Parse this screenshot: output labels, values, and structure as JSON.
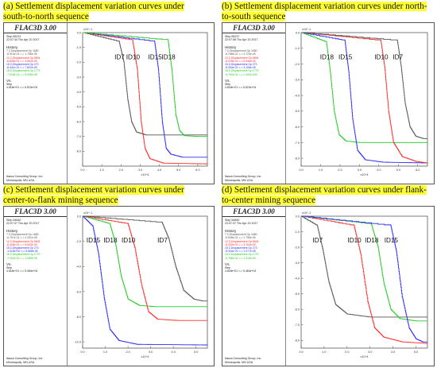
{
  "panels": [
    {
      "title_line1": "(a) Settlement displacement variation curves under",
      "title_line2": "south-to-north sequence",
      "logo": "FLAC3D 3.00",
      "step": "Step 65231",
      "time": "22:07:34 Thu Apr 20 2017",
      "history_label": "History",
      "h1": "7 Z-Displacement Gp 1680",
      "h1b": "-6.913e-01 <-> 1.756e-05",
      "h2": "10 Z-Displacement Gp 6834",
      "h2b": "-8.835e-01 <-> 3.842e-05",
      "h3": "15 Z-Displacement Gp 273",
      "h3b": "-8.441e-01 <-> 7.822e-05",
      "h4": "18 Z-Displacement Gp 1779",
      "h4b": "-7.018e-01 <-> 5.098e-05",
      "vs_label": "Vs.",
      "step_label": "Step",
      "step_range": "4.818e+01 <-> 6.523e+04",
      "footer1": "Itasca Consulting Group, Inc.",
      "footer2": "Minneapolis, MN  USA"
    },
    {
      "title_line1": "(b) Settlement displacement variation curves under north-",
      "title_line2": "to-south sequence",
      "logo": "FLAC3D 3.00",
      "step": "Step 65237",
      "time": "22:07:58 Thu Apr 20 2017",
      "history_label": "History",
      "h1": "7 Z-Displacement Gp 1680",
      "h1b": "-6.768e-01 <-> 4.723e-05",
      "h2": "10 Z-Displacement Gp 6834",
      "h2b": "-8.378e-01 <-> 5.946e-05",
      "h3": "15 Z-Displacement Gp 273",
      "h3b": "-8.264e-01 <-> 3.106e-05",
      "h4": "18 Z-Displacement Gp 1779",
      "h4b": "-6.762e-01 <-> 1.151e-004",
      "vs_label": "Vs.",
      "step_label": "Step",
      "step_range": "4.818e+01 <-> 6.523e+04",
      "footer1": "Itasca Consulting Group, Inc.",
      "footer2": "Minneapolis, MN  USA"
    },
    {
      "title_line1": "(c) Settlement displacement variation curves under",
      "title_line2": "center-to-flank mining sequence",
      "logo": "FLAC3D 3.00",
      "step": "Step 54840",
      "time": "22:07:37 Thu Apr 20 2017",
      "history_label": "History",
      "h1": "7 Z-Displacement Gp 1680",
      "h1b": "-6.767e-01 <-> 4.331e-05",
      "h2": "10 Z-Displacement Gp 6834",
      "h2b": "-8.326e-01 <-> 5.643e-05",
      "h3": "15 Z-Displacement Gp 273",
      "h3b": "-1.023e+00 <-> 5.868e-05",
      "h4": "18 Z-Displacement Gp 1779",
      "h4b": "-7.201e-01 <-> 1.089e-05",
      "vs_label": "Vs.",
      "step_label": "Step",
      "step_range": "4.818e+01 <-> 5.484e+04",
      "footer1": "Itasca Consulting Group, Inc.",
      "footer2": "Minneapolis, MN  USA"
    },
    {
      "title_line1": "(d) Settlement displacement variation curves under flank-",
      "title_line2": "to-center mining sequence",
      "logo": "FLAC3D 3.00",
      "step": "Step 54840",
      "time": "22:07:37 Thu Apr 20 2017",
      "history_label": "History",
      "h1": "7 Z-Displacement Gp 1680",
      "h1b": "-6.508e-01 <-> 1.756e-05",
      "h2": "10 Z-Displacement Gp 6834",
      "h2b": "-8.232e-01 <-> 3.764e-05",
      "h3": "15 Z-Displacement Gp 273",
      "h3b": "-8.416e-01 <-> 1.077e-05",
      "h4": "18 Z-Displacement Gp 1779",
      "h4b": "-6.786e-01 <-> 1.210e-05",
      "vs_label": "Vs.",
      "step_label": "Step",
      "step_range": "4.818e+01 <-> 5.484e+04",
      "footer1": "Itasca Consulting Group, Inc.",
      "footer2": "Minneapolis, MN  USA"
    }
  ],
  "colors": {
    "ID7": "#555555",
    "ID10": "#ff2a2a",
    "ID15": "#2b2bff",
    "ID18": "#22cc22",
    "title_highlight": "#ffff33"
  },
  "chart_data": [
    {
      "type": "line",
      "panel": "a",
      "x_axis_label": "x10^4",
      "y_axis_label": "x10^-1",
      "xlim": [
        0,
        6.5
      ],
      "ylim": [
        -9,
        0
      ],
      "xticks": [
        "0.0",
        "1.0",
        "2.0",
        "3.0",
        "4.0",
        "5.0",
        "6.0"
      ],
      "yticks": [
        "0.0",
        "-1.0",
        "-2.0",
        "-3.0",
        "-4.0",
        "-5.0",
        "-6.0",
        "-7.0",
        "-8.0"
      ],
      "series": [
        {
          "name": "ID7",
          "color": "#555555",
          "x": [
            0.0,
            1.9,
            2.15,
            2.35,
            2.55,
            2.8,
            3.3,
            6.5
          ],
          "y": [
            0.0,
            -0.6,
            -2.0,
            -4.5,
            -6.0,
            -6.7,
            -6.9,
            -6.9
          ]
        },
        {
          "name": "ID10",
          "color": "#ff2a2a",
          "x": [
            0.0,
            2.6,
            2.85,
            3.05,
            3.25,
            3.5,
            4.2,
            6.5
          ],
          "y": [
            0.0,
            -0.5,
            -2.5,
            -6.0,
            -7.8,
            -8.5,
            -8.8,
            -8.85
          ]
        },
        {
          "name": "ID15",
          "color": "#2b2bff",
          "x": [
            0.0,
            3.75,
            3.95,
            4.15,
            4.35,
            4.6,
            5.2,
            6.5
          ],
          "y": [
            0.0,
            -0.6,
            -2.5,
            -6.0,
            -7.8,
            -8.2,
            -8.4,
            -8.4
          ]
        },
        {
          "name": "ID18",
          "color": "#22cc22",
          "x": [
            0.0,
            4.45,
            4.65,
            4.85,
            5.05,
            5.3,
            6.0,
            6.5
          ],
          "y": [
            0.0,
            -0.5,
            -2.5,
            -5.5,
            -6.6,
            -6.95,
            -7.0,
            -7.0
          ]
        }
      ],
      "annotations": [
        "ID7",
        "ID10",
        "ID15",
        "ID18"
      ]
    },
    {
      "type": "line",
      "panel": "b",
      "x_axis_label": "x10^4",
      "y_axis_label": "x10^-1",
      "xlim": [
        0,
        6.5
      ],
      "ylim": [
        -8.5,
        0
      ],
      "xticks": [
        "0.0",
        "1.0",
        "2.0",
        "3.0",
        "4.0",
        "5.0",
        "6.0"
      ],
      "yticks": [
        "0.0",
        "-1.0",
        "-2.0",
        "-3.0",
        "-4.0",
        "-5.0",
        "-6.0",
        "-7.0",
        "-8.0"
      ],
      "series": [
        {
          "name": "ID18",
          "color": "#22cc22",
          "x": [
            0.0,
            1.3,
            1.5,
            1.7,
            1.95,
            2.3,
            3.0,
            6.5
          ],
          "y": [
            0.0,
            -0.6,
            -2.5,
            -5.0,
            -6.5,
            -6.9,
            -7.0,
            -7.0
          ]
        },
        {
          "name": "ID15",
          "color": "#2b2bff",
          "x": [
            0.0,
            2.25,
            2.45,
            2.65,
            2.9,
            3.3,
            4.2,
            6.5
          ],
          "y": [
            0.0,
            -0.5,
            -2.5,
            -5.5,
            -7.5,
            -8.1,
            -8.25,
            -8.3
          ]
        },
        {
          "name": "ID10",
          "color": "#ff2a2a",
          "x": [
            0.0,
            4.1,
            4.3,
            4.5,
            4.75,
            5.2,
            5.9,
            6.5
          ],
          "y": [
            0.0,
            -0.5,
            -2.2,
            -5.0,
            -7.0,
            -7.9,
            -8.2,
            -8.3
          ]
        },
        {
          "name": "ID7",
          "color": "#555555",
          "x": [
            0.0,
            4.95,
            5.15,
            5.35,
            5.6,
            5.9,
            6.3,
            6.5
          ],
          "y": [
            0.0,
            -0.5,
            -2.2,
            -4.5,
            -6.0,
            -6.6,
            -6.75,
            -6.75
          ]
        }
      ],
      "annotations": [
        "ID18",
        "ID15",
        "ID10",
        "ID7"
      ]
    },
    {
      "type": "line",
      "panel": "c",
      "x_axis_label": "x10^4",
      "y_axis_label": "x10^-1",
      "xlim": [
        0,
        5.5
      ],
      "ylim": [
        -10.5,
        0
      ],
      "xticks": [
        "0.0",
        "1.0",
        "2.0",
        "3.0",
        "4.0",
        "5.0"
      ],
      "yticks": [
        "0.0",
        "-2.0",
        "-4.0",
        "-6.0",
        "-8.0",
        "-10.0"
      ],
      "series": [
        {
          "name": "ID15",
          "color": "#2b2bff",
          "x": [
            0.0,
            0.45,
            0.7,
            0.95,
            1.2,
            1.6,
            2.4,
            5.5
          ],
          "y": [
            0.0,
            -0.8,
            -3.0,
            -6.5,
            -9.0,
            -9.9,
            -10.2,
            -10.25
          ]
        },
        {
          "name": "ID18",
          "color": "#22cc22",
          "x": [
            0.0,
            1.2,
            1.45,
            1.7,
            2.0,
            2.5,
            3.2,
            5.5
          ],
          "y": [
            0.0,
            -0.6,
            -2.2,
            -4.8,
            -6.6,
            -7.1,
            -7.2,
            -7.2
          ]
        },
        {
          "name": "ID10",
          "color": "#ff2a2a",
          "x": [
            0.0,
            2.0,
            2.3,
            2.6,
            2.9,
            3.3,
            4.2,
            5.5
          ],
          "y": [
            0.0,
            -0.6,
            -2.5,
            -5.5,
            -7.6,
            -8.2,
            -8.3,
            -8.3
          ]
        },
        {
          "name": "ID7",
          "color": "#555555",
          "x": [
            0.0,
            3.5,
            3.8,
            4.1,
            4.45,
            4.9,
            5.3,
            5.5
          ],
          "y": [
            0.0,
            -0.5,
            -1.8,
            -4.0,
            -5.9,
            -6.6,
            -6.75,
            -6.75
          ]
        }
      ],
      "annotations": [
        "ID15",
        "ID18",
        "ID10",
        "ID7"
      ]
    },
    {
      "type": "line",
      "panel": "d",
      "x_axis_label": "x10^4",
      "y_axis_label": "x10^-1",
      "xlim": [
        0,
        5.5
      ],
      "ylim": [
        -8.5,
        0
      ],
      "xticks": [
        "0.0",
        "1.0",
        "2.0",
        "3.0",
        "4.0",
        "5.0"
      ],
      "yticks": [
        "0.0",
        "-1.0",
        "-2.0",
        "-3.0",
        "-4.0",
        "-5.0",
        "-6.0",
        "-7.0",
        "-8.0"
      ],
      "series": [
        {
          "name": "ID7",
          "color": "#555555",
          "x": [
            0.0,
            0.7,
            0.95,
            1.2,
            1.5,
            2.0,
            3.0,
            5.5
          ],
          "y": [
            0.0,
            -0.6,
            -2.2,
            -4.2,
            -5.7,
            -6.3,
            -6.5,
            -6.5
          ]
        },
        {
          "name": "ID10",
          "color": "#ff2a2a",
          "x": [
            0.0,
            2.3,
            2.6,
            2.9,
            3.2,
            3.6,
            4.4,
            5.5
          ],
          "y": [
            0.0,
            -0.6,
            -2.5,
            -5.5,
            -7.2,
            -7.8,
            -8.1,
            -8.2
          ]
        },
        {
          "name": "ID18",
          "color": "#22cc22",
          "x": [
            0.0,
            3.05,
            3.35,
            3.6,
            3.9,
            4.3,
            5.0,
            5.5
          ],
          "y": [
            0.0,
            -0.5,
            -2.0,
            -4.3,
            -6.0,
            -6.6,
            -6.75,
            -6.75
          ]
        },
        {
          "name": "ID15",
          "color": "#2b2bff",
          "x": [
            0.0,
            3.9,
            4.15,
            4.4,
            4.7,
            5.0,
            5.3,
            5.5
          ],
          "y": [
            0.0,
            -0.6,
            -2.3,
            -5.2,
            -7.2,
            -7.9,
            -8.1,
            -8.1
          ]
        }
      ],
      "annotations": [
        "ID7",
        "ID10",
        "ID18",
        "ID15"
      ]
    }
  ]
}
